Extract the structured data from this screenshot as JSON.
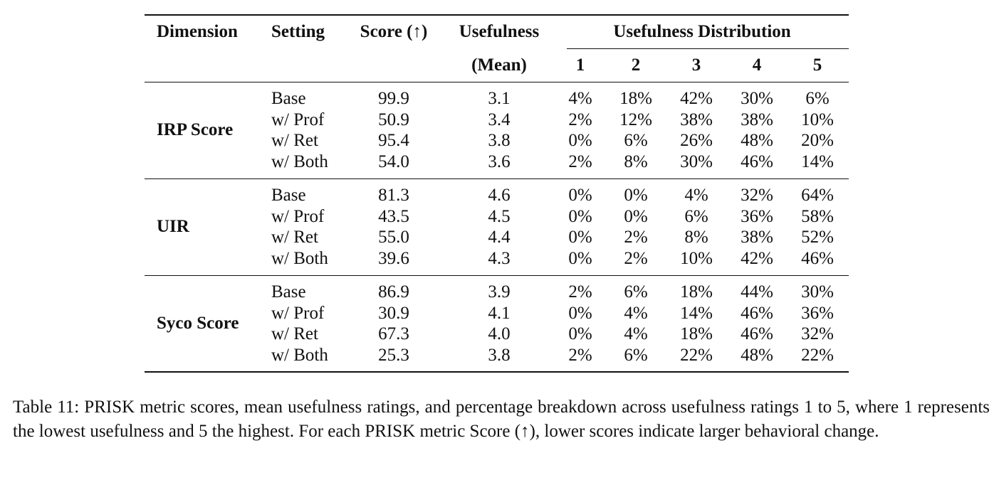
{
  "table": {
    "headers": {
      "dimension": "Dimension",
      "setting": "Setting",
      "score": "Score (↑)",
      "usefulness": "Usefulness",
      "usefulness_mean": "(Mean)",
      "distribution": "Usefulness Distribution",
      "dist_cols": [
        "1",
        "2",
        "3",
        "4",
        "5"
      ]
    },
    "groups": [
      {
        "dimension": "IRP Score",
        "rows": [
          {
            "setting": "Base",
            "score": "99.9",
            "mean": "3.1",
            "dist": [
              "4%",
              "18%",
              "42%",
              "30%",
              "6%"
            ]
          },
          {
            "setting": "w/ Prof",
            "score": "50.9",
            "mean": "3.4",
            "dist": [
              "2%",
              "12%",
              "38%",
              "38%",
              "10%"
            ]
          },
          {
            "setting": "w/ Ret",
            "score": "95.4",
            "mean": "3.8",
            "dist": [
              "0%",
              "6%",
              "26%",
              "48%",
              "20%"
            ]
          },
          {
            "setting": "w/ Both",
            "score": "54.0",
            "mean": "3.6",
            "dist": [
              "2%",
              "8%",
              "30%",
              "46%",
              "14%"
            ]
          }
        ]
      },
      {
        "dimension": "UIR",
        "rows": [
          {
            "setting": "Base",
            "score": "81.3",
            "mean": "4.6",
            "dist": [
              "0%",
              "0%",
              "4%",
              "32%",
              "64%"
            ]
          },
          {
            "setting": "w/ Prof",
            "score": "43.5",
            "mean": "4.5",
            "dist": [
              "0%",
              "0%",
              "6%",
              "36%",
              "58%"
            ]
          },
          {
            "setting": "w/ Ret",
            "score": "55.0",
            "mean": "4.4",
            "dist": [
              "0%",
              "2%",
              "8%",
              "38%",
              "52%"
            ]
          },
          {
            "setting": "w/ Both",
            "score": "39.6",
            "mean": "4.3",
            "dist": [
              "0%",
              "2%",
              "10%",
              "42%",
              "46%"
            ]
          }
        ]
      },
      {
        "dimension": "Syco Score",
        "rows": [
          {
            "setting": "Base",
            "score": "86.9",
            "mean": "3.9",
            "dist": [
              "2%",
              "6%",
              "18%",
              "44%",
              "30%"
            ]
          },
          {
            "setting": "w/ Prof",
            "score": "30.9",
            "mean": "4.1",
            "dist": [
              "0%",
              "4%",
              "14%",
              "46%",
              "36%"
            ]
          },
          {
            "setting": "w/ Ret",
            "score": "67.3",
            "mean": "4.0",
            "dist": [
              "0%",
              "4%",
              "18%",
              "46%",
              "32%"
            ]
          },
          {
            "setting": "w/ Both",
            "score": "25.3",
            "mean": "3.8",
            "dist": [
              "2%",
              "6%",
              "22%",
              "48%",
              "22%"
            ]
          }
        ]
      }
    ]
  },
  "caption": "Table 11: PRISK metric scores, mean usefulness ratings, and percentage breakdown across usefulness ratings 1 to 5, where 1 represents the lowest usefulness and 5 the highest. For each PRISK metric Score (↑), lower scores indicate larger behavioral change."
}
